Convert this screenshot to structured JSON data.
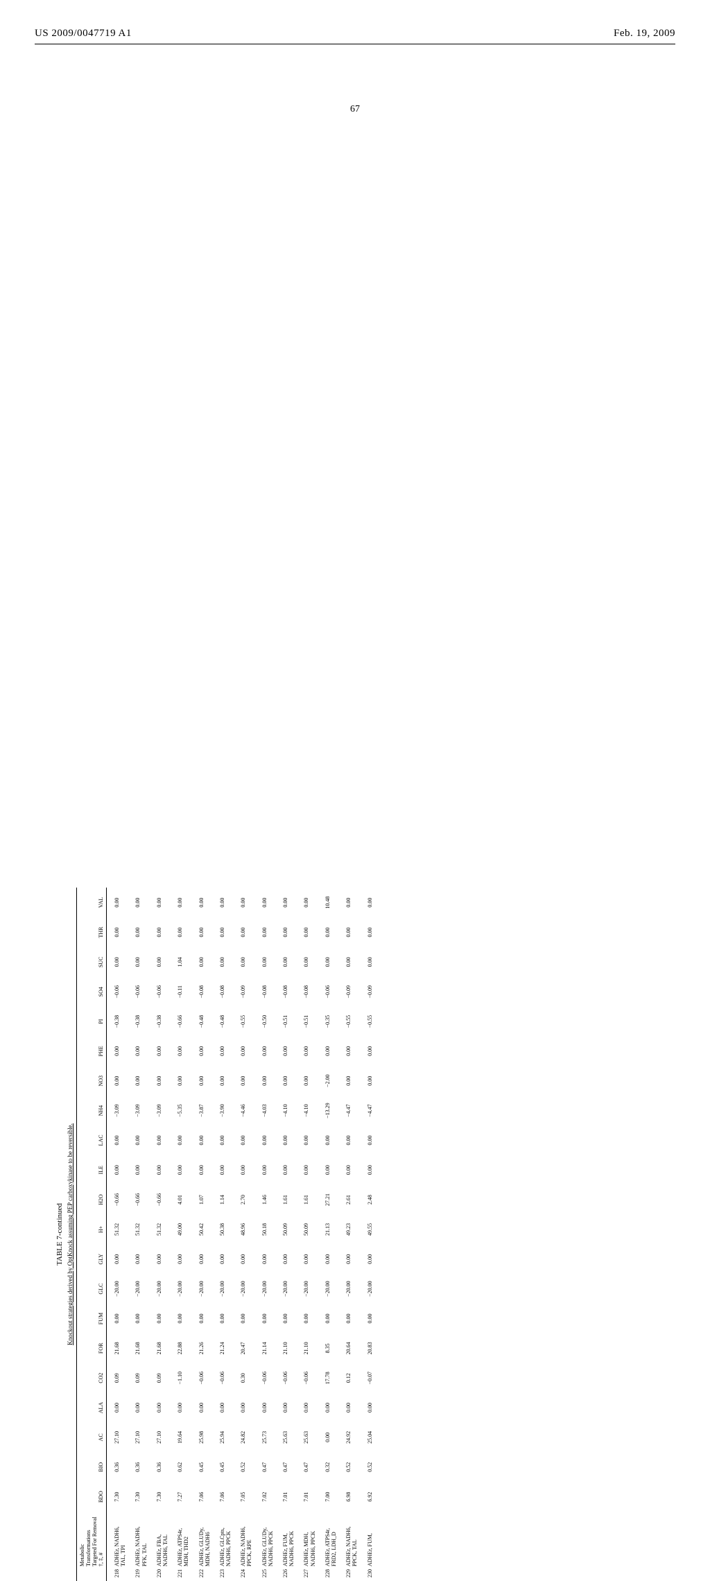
{
  "header": {
    "left": "US 2009/0047719 A1",
    "right": "Feb. 19, 2009"
  },
  "page_number": "67",
  "table": {
    "caption": "TABLE 7-continued",
    "subcaption": "Knockout strategies derived by OptKnock assuming PEP carboxykinase to be reversible.",
    "columns": [
      "Metabolic Transformations Targeted For Removal †, ‡, #",
      "BDO",
      "BIO",
      "AC",
      "ALA",
      "CO2",
      "FOR",
      "FUM",
      "GLC",
      "GLY",
      "H+",
      "H2O",
      "ILE",
      "LAC",
      "NH4",
      "NO3",
      "PHE",
      "PI",
      "SO4",
      "SUC",
      "THR",
      "VAL"
    ],
    "rows": [
      {
        "n": "218",
        "mt": "ADHEr, NADH6, TAL, TPI",
        "v": [
          "7.30",
          "0.36",
          "27.10",
          "0.00",
          "0.09",
          "21.68",
          "0.00",
          "−20.00",
          "0.00",
          "51.32",
          "−0.66",
          "0.00",
          "0.00",
          "−3.09",
          "0.00",
          "0.00",
          "−0.38",
          "−0.06",
          "0.00",
          "0.00",
          "0.00"
        ]
      },
      {
        "n": "219",
        "mt": "ADHEr, NADH6, PFK, TAL",
        "v": [
          "7.30",
          "0.36",
          "27.10",
          "0.00",
          "0.09",
          "21.68",
          "0.00",
          "−20.00",
          "0.00",
          "51.32",
          "−0.66",
          "0.00",
          "0.00",
          "−3.09",
          "0.00",
          "0.00",
          "−0.38",
          "−0.06",
          "0.00",
          "0.00",
          "0.00"
        ]
      },
      {
        "n": "220",
        "mt": "ADHEr, FBA, NADH6, TAL",
        "v": [
          "7.30",
          "0.36",
          "27.10",
          "0.00",
          "0.09",
          "21.68",
          "0.00",
          "−20.00",
          "0.00",
          "51.32",
          "−0.66",
          "0.00",
          "0.00",
          "−3.09",
          "0.00",
          "0.00",
          "−0.38",
          "−0.06",
          "0.00",
          "0.00",
          "0.00"
        ]
      },
      {
        "n": "221",
        "mt": "ADHEr, ATPS4r, MDH, THD2",
        "v": [
          "7.27",
          "0.62",
          "19.64",
          "0.00",
          "−1.10",
          "22.88",
          "0.00",
          "−20.00",
          "0.00",
          "49.00",
          "4.01",
          "0.00",
          "0.00",
          "−5.35",
          "0.00",
          "0.00",
          "−0.66",
          "−0.11",
          "1.04",
          "0.00",
          "0.00"
        ]
      },
      {
        "n": "222",
        "mt": "ADHEr, GLUDy, MDH, NADH6",
        "v": [
          "7.06",
          "0.45",
          "25.98",
          "0.00",
          "−0.06",
          "21.26",
          "0.00",
          "−20.00",
          "0.00",
          "50.42",
          "1.07",
          "0.00",
          "0.00",
          "−3.87",
          "0.00",
          "0.00",
          "−0.48",
          "−0.08",
          "0.00",
          "0.00",
          "0.00"
        ]
      },
      {
        "n": "223",
        "mt": "ADHEr, GLCpts, NADH6, PPCK",
        "v": [
          "7.06",
          "0.45",
          "25.94",
          "0.00",
          "−0.06",
          "21.24",
          "0.00",
          "−20.00",
          "0.00",
          "50.38",
          "1.14",
          "0.00",
          "0.00",
          "−3.90",
          "0.00",
          "0.00",
          "−0.48",
          "−0.08",
          "0.00",
          "0.00",
          "0.00"
        ]
      },
      {
        "n": "224",
        "mt": "ADHEr, NADH6, PPCK, RPE",
        "v": [
          "7.05",
          "0.52",
          "24.82",
          "0.00",
          "0.30",
          "20.47",
          "0.00",
          "−20.00",
          "0.00",
          "48.96",
          "2.70",
          "0.00",
          "0.00",
          "−4.46",
          "0.00",
          "0.00",
          "−0.55",
          "−0.09",
          "0.00",
          "0.00",
          "0.00"
        ]
      },
      {
        "n": "225",
        "mt": "ADHEr, GLUDy, NADH6, PPCK",
        "v": [
          "7.02",
          "0.47",
          "25.73",
          "0.00",
          "−0.06",
          "21.14",
          "0.00",
          "−20.00",
          "0.00",
          "50.18",
          "1.46",
          "0.00",
          "0.00",
          "−4.03",
          "0.00",
          "0.00",
          "−0.50",
          "−0.08",
          "0.00",
          "0.00",
          "0.00"
        ]
      },
      {
        "n": "226",
        "mt": "ADHEr, FUM, NADH6, PPCK",
        "v": [
          "7.01",
          "0.47",
          "25.63",
          "0.00",
          "−0.06",
          "21.10",
          "0.00",
          "−20.00",
          "0.00",
          "50.09",
          "1.61",
          "0.00",
          "0.00",
          "−4.10",
          "0.00",
          "0.00",
          "−0.51",
          "−0.08",
          "0.00",
          "0.00",
          "0.00"
        ]
      },
      {
        "n": "227",
        "mt": "ADHEr, MDH, NADH6, PPCK",
        "v": [
          "7.01",
          "0.47",
          "25.63",
          "0.00",
          "−0.06",
          "21.10",
          "0.00",
          "−20.00",
          "0.00",
          "50.09",
          "1.61",
          "0.00",
          "0.00",
          "−4.10",
          "0.00",
          "0.00",
          "−0.51",
          "−0.08",
          "0.00",
          "0.00",
          "0.00"
        ]
      },
      {
        "n": "228",
        "mt": "ADHEr, ATPS4r, FRD2, LDH_D",
        "v": [
          "7.00",
          "0.32",
          "0.00",
          "0.00",
          "17.78",
          "8.35",
          "0.00",
          "−20.00",
          "0.00",
          "21.13",
          "27.21",
          "0.00",
          "0.00",
          "−13.29",
          "−2.00",
          "0.00",
          "−0.35",
          "−0.06",
          "0.00",
          "0.00",
          "10.48"
        ]
      },
      {
        "n": "229",
        "mt": "ADHEr, NADH6, PPCK, TAL",
        "v": [
          "6.98",
          "0.52",
          "24.92",
          "0.00",
          "0.12",
          "20.64",
          "0.00",
          "−20.00",
          "0.00",
          "49.23",
          "2.61",
          "0.00",
          "0.00",
          "−4.47",
          "0.00",
          "0.00",
          "−0.55",
          "−0.09",
          "0.00",
          "0.00",
          "0.00"
        ]
      },
      {
        "n": "230",
        "mt": "ADHEr, FUM,",
        "v": [
          "6.92",
          "0.52",
          "25.04",
          "0.00",
          "−0.07",
          "20.83",
          "0.00",
          "−20.00",
          "0.00",
          "49.55",
          "2.48",
          "0.00",
          "0.00",
          "−4.47",
          "0.00",
          "0.00",
          "−0.55",
          "−0.09",
          "0.00",
          "0.00",
          "0.00"
        ]
      }
    ]
  }
}
